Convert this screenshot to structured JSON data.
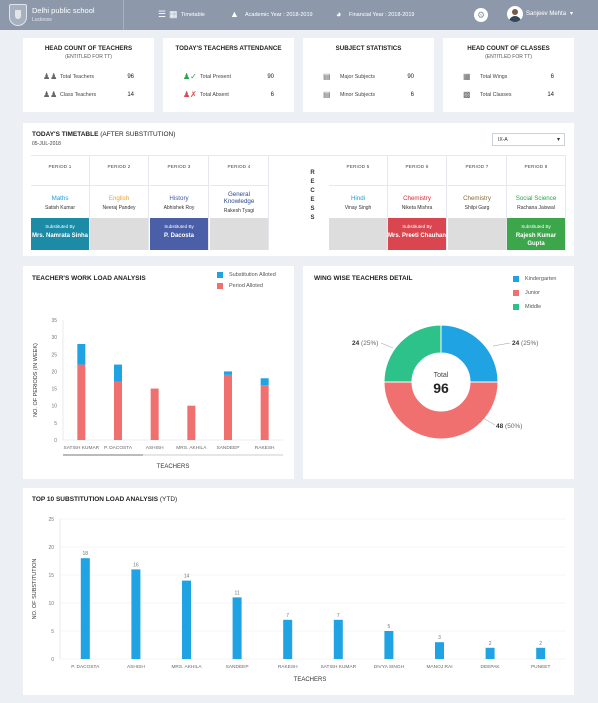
{
  "header": {
    "school_name": "Delhi public school",
    "city": "Lucknow",
    "timetable_label": "Timetable",
    "academic_year": "Academic Year : 2018-2019",
    "financial_year": "Financial Year : 2018-2019",
    "user_name": "Sanjeev Mehta",
    "icons": [
      "school-logo",
      "menu-list-icon",
      "calendar-grid-icon",
      "graduation-cap-icon",
      "pie-chart-icon",
      "gear-icon",
      "avatar",
      "chevron-down-icon"
    ]
  },
  "stats": {
    "teachers": {
      "title": "HEAD COUNT OF TEACHERS",
      "subtitle": "(ENTITLED FOR TT)",
      "rows": [
        {
          "label": "Total Teachers",
          "value": "96",
          "icon": "group-icon"
        },
        {
          "label": "Class Teachers",
          "value": "14",
          "icon": "group-icon"
        }
      ]
    },
    "attendance": {
      "title": "TODAY'S TEACHERS ATTENDANCE",
      "rows": [
        {
          "label": "Total Present",
          "value": "90",
          "icon": "user-check-icon"
        },
        {
          "label": "Total Absent",
          "value": "6",
          "icon": "user-cross-icon"
        }
      ]
    },
    "subjects": {
      "title": "SUBJECT STATISTICS",
      "rows": [
        {
          "label": "Major Subjects",
          "value": "90",
          "icon": "book-icon"
        },
        {
          "label": "Minor Subjects",
          "value": "6",
          "icon": "book-icon"
        }
      ]
    },
    "classes": {
      "title": "HEAD COUNT OF CLASSES",
      "subtitle": "(ENTITLED FOR TT)",
      "rows": [
        {
          "label": "Total Wings",
          "value": "6",
          "icon": "building-icon"
        },
        {
          "label": "Total Classes",
          "value": "14",
          "icon": "classroom-icon"
        }
      ]
    }
  },
  "timetable": {
    "title": "TODAY'S TIMETABLE",
    "title_suffix": "(AFTER SUBSTITUTION)",
    "date": "05-JUL-2018",
    "class_select": "IX-A",
    "recess_label": "RECESS",
    "periods": [
      {
        "label": "PERIOD 1",
        "subject": "Maths",
        "teacher": "Satish Kumar",
        "subject_color": "#1a9fd6",
        "substituted_label": "Substituted By",
        "substituted_by": "Mrs. Namrata Sinha",
        "sub_color": "#1c8ba6"
      },
      {
        "label": "PERIOD 2",
        "subject": "English",
        "teacher": "Neeraj Pandey",
        "subject_color": "#f0a030",
        "substituted_label": "",
        "substituted_by": "",
        "sub_color": "#dddddd"
      },
      {
        "label": "PERIOD 3",
        "subject": "History",
        "teacher": "Abhishek Roy",
        "subject_color": "#3f5aa8",
        "substituted_label": "Substituted By",
        "substituted_by": "P. Dacosta",
        "sub_color": "#4a5fa8"
      },
      {
        "label": "PERIOD 4",
        "subject": "General Knowledge",
        "teacher": "Rakesh Tyagi",
        "subject_color": "#2a4a8a",
        "substituted_label": "",
        "substituted_by": "",
        "sub_color": "#dddddd"
      },
      {
        "label": "PERIOD 5",
        "subject": "Hindi",
        "teacher": "Vinay Singh",
        "subject_color": "#1a9fd6",
        "substituted_label": "",
        "substituted_by": "",
        "sub_color": "#dddddd"
      },
      {
        "label": "PERIOD 6",
        "subject": "Chemistry",
        "teacher": "Niketa Mishra",
        "subject_color": "#d42a3a",
        "substituted_label": "Substituted By",
        "substituted_by": "Mrs. Preeti Chauhan",
        "sub_color": "#d9464f"
      },
      {
        "label": "PERIOD 7",
        "subject": "Chemistry",
        "teacher": "Shilpi Garg",
        "subject_color": "#8a6a3a",
        "substituted_label": "",
        "substituted_by": "",
        "sub_color": "#dddddd"
      },
      {
        "label": "PERIOD 8",
        "subject": "Social Science",
        "teacher": "Rachana Jaiswal",
        "subject_color": "#2aa050",
        "substituted_label": "Substituted By",
        "substituted_by": "Rajesh Kumar Gupta",
        "sub_color": "#3ca64a"
      }
    ]
  },
  "workload": {
    "title": "TEACHER'S WORK LOAD ANALYSIS",
    "legend": [
      "Substitution Alloted",
      "Period Alloted"
    ],
    "colors": [
      "#1fa3e3",
      "#f07070"
    ]
  },
  "wing": {
    "title": "WING WISE TEACHERS DETAIL",
    "legend": [
      "Kindergarten",
      "Junior",
      "Middle"
    ],
    "colors": [
      "#1fa3e3",
      "#f07070",
      "#2ec28b"
    ],
    "total_label": "Total",
    "total_value": "96",
    "labels": [
      {
        "value": "24",
        "pct": "(25%)"
      },
      {
        "value": "48",
        "pct": "(50%)"
      },
      {
        "value": "24",
        "pct": "(25%)"
      }
    ]
  },
  "substitution": {
    "title": "TOP 10 SUBSTITUTION LOAD ANALYSIS",
    "title_suffix": "(YTD)"
  },
  "chart_data": [
    {
      "type": "bar",
      "title": "TEACHER'S WORK LOAD ANALYSIS",
      "xlabel": "TEACHERS",
      "ylabel": "NO. OF PERIODS (IN WEEK)",
      "categories": [
        "SATISH KUMAR",
        "P. DACOSTA",
        "ASHISH",
        "MRS. AKHILA",
        "SANDEEP",
        "RAKESH"
      ],
      "series": [
        {
          "name": "Period Alloted",
          "values": [
            22,
            17,
            15,
            10,
            19,
            16
          ]
        },
        {
          "name": "Substitution Alloted",
          "values": [
            6,
            5,
            0,
            0,
            1,
            2
          ]
        }
      ],
      "stacked": true,
      "ylim": [
        0,
        35
      ],
      "yticks": [
        0,
        5,
        10,
        15,
        20,
        25,
        30,
        35
      ],
      "legend": "top-right",
      "grid": false
    },
    {
      "type": "pie",
      "title": "WING WISE TEACHERS DETAIL",
      "categories": [
        "Kindergarten",
        "Junior",
        "Middle"
      ],
      "values": [
        24,
        48,
        24
      ],
      "legend": "top-right"
    },
    {
      "type": "bar",
      "title": "TOP 10 SUBSTITUTION LOAD ANALYSIS (YTD)",
      "xlabel": "TEACHERS",
      "ylabel": "NO. OF SUBSTITUTION",
      "categories": [
        "P. DACOSTA",
        "ASHISH",
        "MRS. AKHILA",
        "SANDEEP",
        "RAKESH",
        "SATISH KUMAR",
        "DIVYA SINGH",
        "MANOJ RAI",
        "DEEPAK",
        "PUNEET"
      ],
      "values": [
        18,
        16,
        14,
        11,
        7,
        7,
        5,
        3,
        2,
        2
      ],
      "ylim": [
        0,
        25
      ],
      "yticks": [
        0,
        5,
        10,
        15,
        20,
        25
      ],
      "grid": true
    }
  ]
}
